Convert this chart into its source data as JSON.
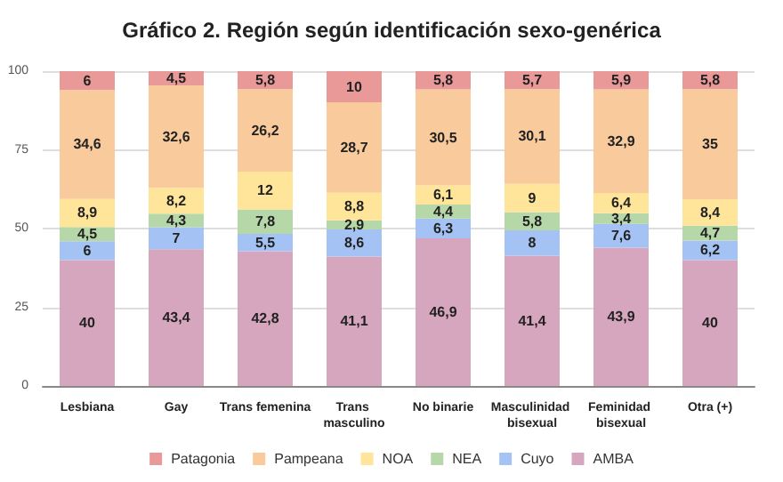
{
  "chart_data": {
    "type": "bar",
    "stacked": true,
    "title": "Gráfico 2. Región según identificación sexo-genérica",
    "categories": [
      "Lesbiana",
      "Gay",
      "Trans femenina",
      "Trans masculino",
      "No binarie",
      "Masculinidad bisexual",
      "Feminidad bisexual",
      "Otra (+)"
    ],
    "series": [
      {
        "name": "AMBA",
        "color": "#d5a6bd",
        "values": [
          40,
          43.4,
          42.8,
          41.1,
          46.9,
          41.4,
          43.9,
          40
        ],
        "value_labels": [
          "40",
          "43,4",
          "42,8",
          "41,1",
          "46,9",
          "41,4",
          "43,9",
          "40"
        ]
      },
      {
        "name": "Cuyo",
        "color": "#a4c2f4",
        "values": [
          6,
          7,
          5.5,
          8.6,
          6.3,
          8,
          7.6,
          6.2
        ],
        "value_labels": [
          "6",
          "7",
          "5,5",
          "8,6",
          "6,3",
          "8",
          "7,6",
          "6,2"
        ]
      },
      {
        "name": "NEA",
        "color": "#b6d7a8",
        "values": [
          4.5,
          4.3,
          7.8,
          2.9,
          4.4,
          5.8,
          3.4,
          4.7
        ],
        "value_labels": [
          "4,5",
          "4,3",
          "7,8",
          "2,9",
          "4,4",
          "5,8",
          "3,4",
          "4,7"
        ]
      },
      {
        "name": "NOA",
        "color": "#ffe599",
        "values": [
          8.9,
          8.2,
          12,
          8.8,
          6.1,
          9,
          6.4,
          8.4
        ],
        "value_labels": [
          "8,9",
          "8,2",
          "12",
          "8,8",
          "6,1",
          "9",
          "6,4",
          "8,4"
        ]
      },
      {
        "name": "Pampeana",
        "color": "#f9cb9c",
        "values": [
          34.6,
          32.6,
          26.2,
          28.7,
          30.5,
          30.1,
          32.9,
          35
        ],
        "value_labels": [
          "34,6",
          "32,6",
          "26,2",
          "28,7",
          "30,5",
          "30,1",
          "32,9",
          "35"
        ]
      },
      {
        "name": "Patagonia",
        "color": "#ea9999",
        "values": [
          6,
          4.5,
          5.8,
          10,
          5.8,
          5.7,
          5.9,
          5.8
        ],
        "value_labels": [
          "6",
          "4,5",
          "5,8",
          "10",
          "5,8",
          "5,7",
          "5,9",
          "5,8"
        ]
      }
    ],
    "ylim": [
      0,
      100
    ],
    "yticks": [
      0,
      25,
      50,
      75,
      100
    ],
    "grid": "y",
    "legend": "bottom"
  }
}
